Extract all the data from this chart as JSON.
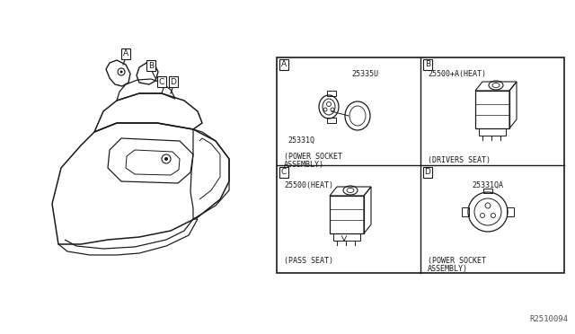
{
  "bg_color": "#ffffff",
  "line_color": "#1a1a1a",
  "fig_width": 6.4,
  "fig_height": 3.72,
  "watermark": "R2510094",
  "labels": {
    "A_part": "25335U",
    "A_sub": "25331Q",
    "A_desc1": "(POWER SOCKET",
    "A_desc2": "ASSEMBLY)",
    "B_part": "25500+A(HEAT)",
    "B_desc": "(DRIVERS SEAT)",
    "C_part": "25500(HEAT)",
    "C_desc": "(PASS SEAT)",
    "D_sub": "25331QA",
    "D_desc1": "(POWER SOCKET",
    "D_desc2": "ASSEMBLY)"
  }
}
